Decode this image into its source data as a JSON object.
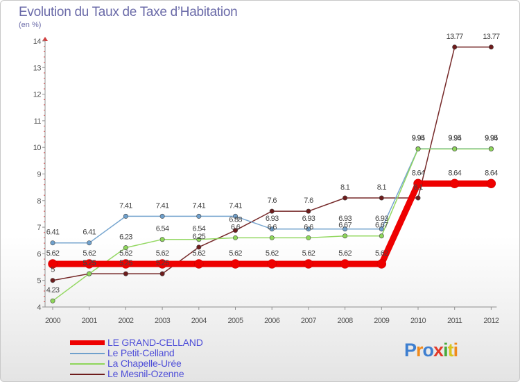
{
  "title": "Evolution du Taux de Taxe d’Habitation",
  "unit": "(en %)",
  "brand": "Proxiti",
  "chart_data": {
    "type": "line",
    "title": "Evolution du Taux de Taxe d’Habitation",
    "ylabel": "(en %)",
    "xlabel": "",
    "categories": [
      "2000",
      "2001",
      "2002",
      "2003",
      "2004",
      "2005",
      "2006",
      "2007",
      "2008",
      "2009",
      "2010",
      "2011",
      "2012"
    ],
    "ylim": [
      4,
      14
    ],
    "yticks": [
      "4",
      "5",
      "6",
      "7",
      "8",
      "9",
      "10",
      "11",
      "12",
      "13",
      "14"
    ],
    "series": [
      {
        "name": "Le Mesnil-Ozenne",
        "color": "#6e1c1c",
        "values": [
          5,
          5.25,
          5.25,
          5.25,
          6.25,
          6.88,
          7.6,
          7.6,
          8.1,
          8.1,
          8.1,
          13.77,
          13.77
        ],
        "labels": [
          "5",
          "5.25",
          "5.25",
          "5.25",
          "6.25",
          "6.88",
          "7.6",
          "7.6",
          "8.1",
          "8.1",
          "8.1",
          "13.77",
          "13.77"
        ]
      },
      {
        "name": "Le Petit-Celland",
        "color": "#6fa0cc",
        "values": [
          6.41,
          6.41,
          7.41,
          7.41,
          7.41,
          7.41,
          6.93,
          6.93,
          6.93,
          6.93,
          9.95,
          9.95,
          9.95
        ],
        "labels": [
          "6.41",
          "6.41",
          "7.41",
          "7.41",
          "7.41",
          "7.41",
          "6.93",
          "6.93",
          "6.93",
          "6.93",
          "9.95",
          "9.95",
          "9.95"
        ]
      },
      {
        "name": "La Chapelle-Urée",
        "color": "#8ed65a",
        "values": [
          4.23,
          5.25,
          6.23,
          6.54,
          6.54,
          6.6,
          6.6,
          6.6,
          6.67,
          6.67,
          9.94,
          9.94,
          9.94
        ],
        "labels": [
          "4.23",
          "5.25",
          "6.23",
          "6.54",
          "6.54",
          "6.6",
          "6.6",
          "6.6",
          "6.67",
          "6.67",
          "9.94",
          "9.94",
          "9.94"
        ]
      },
      {
        "name": "LE GRAND-CELLAND",
        "color": "#ee0000",
        "values": [
          5.62,
          5.62,
          5.62,
          5.62,
          5.62,
          5.62,
          5.62,
          5.62,
          5.62,
          5.62,
          8.64,
          8.64,
          8.64
        ],
        "labels": [
          "5.62",
          "5.62",
          "5.62",
          "5.62",
          "5.62",
          "5.62",
          "5.62",
          "5.62",
          "5.62",
          "5.62",
          "8.64",
          "8.64",
          "8.64"
        ]
      }
    ],
    "legend": [
      "LE GRAND-CELLAND",
      "Le Petit-Celland",
      "La Chapelle-Urée",
      "Le Mesnil-Ozenne"
    ],
    "legend_position": "bottom-left",
    "grid": false
  }
}
